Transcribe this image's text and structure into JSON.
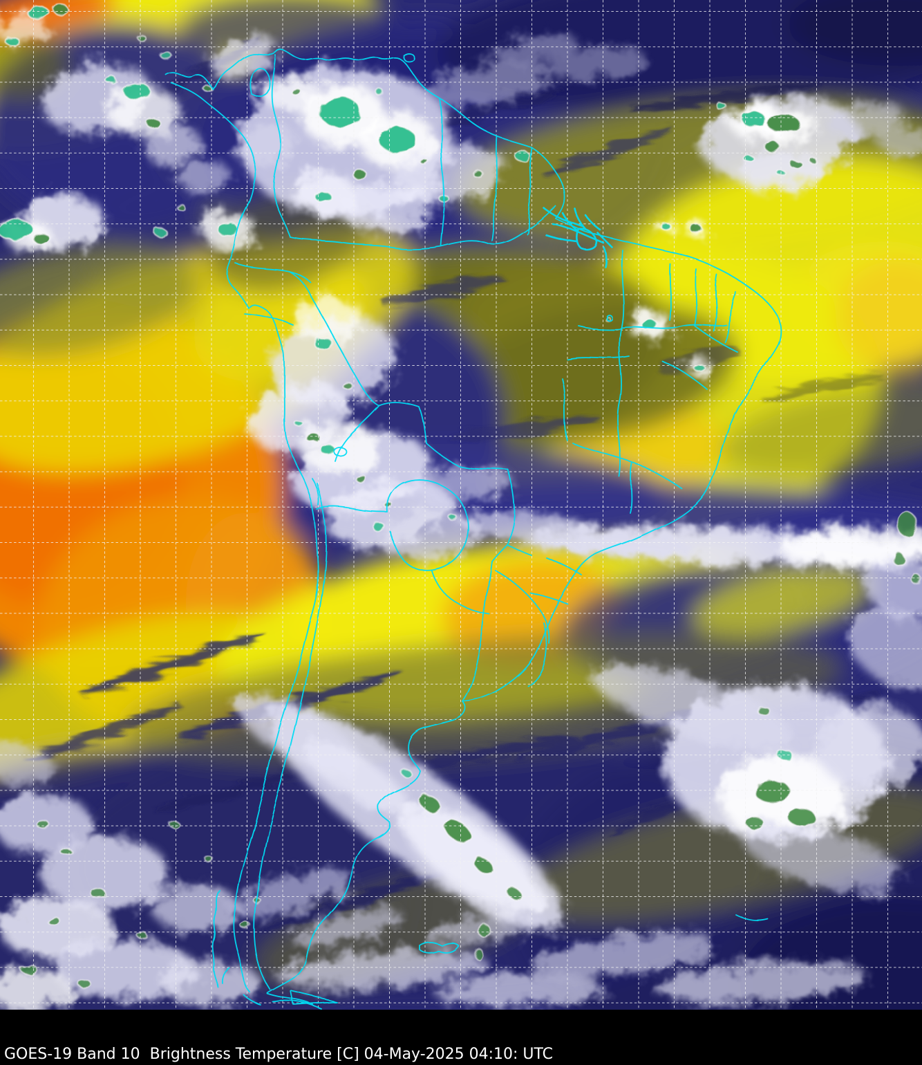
{
  "caption": {
    "full_text": "GOES-19 Band 10  Brightness Temperature [C] 04-May-2025 04:10: UTC",
    "satellite": "GOES-19",
    "band": "Band 10",
    "product": "Brightness Temperature",
    "units": "[C]",
    "date": "04-May-2025",
    "time": "04:10:",
    "timezone": "UTC"
  },
  "colors": {
    "caption_background": "#000000",
    "caption_text": "#ffffff",
    "political_borders": "#00dcf4",
    "graticule": "#f2f2f2",
    "palette_hot_orange": "#ef7000",
    "palette_warm_orange": "#f09200",
    "palette_amber": "#f5c513",
    "palette_dry_yellow": "#eeea10",
    "palette_olive": "#7c7c22",
    "palette_dark_olive": "#6c6c1e",
    "palette_cool_navy": "#2a2a7e",
    "palette_deep_navy": "#1d1d5e",
    "palette_cold_cloud": "#e6e6fa",
    "palette_white_core": "#ffffff",
    "palette_coldest_green": "#2fbe8f",
    "palette_dark_green": "#3f8a42"
  }
}
